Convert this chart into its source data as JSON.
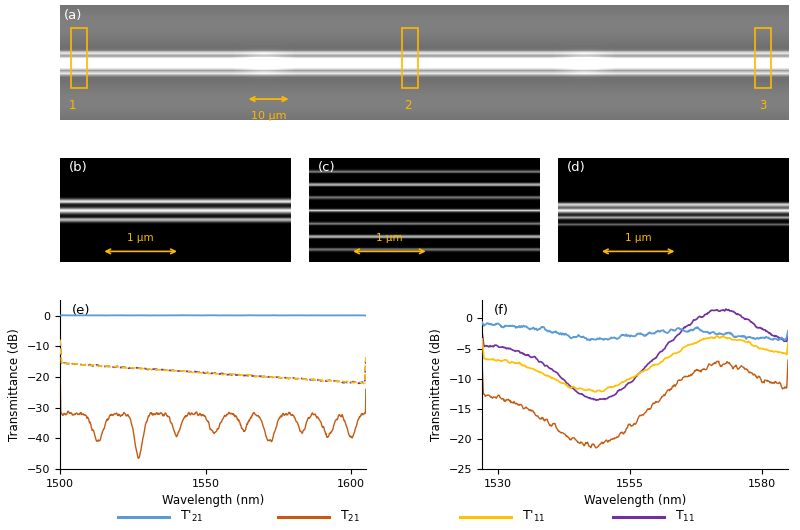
{
  "plot_e": {
    "xlim": [
      1500,
      1605
    ],
    "ylim": [
      -50,
      5
    ],
    "yticks": [
      0,
      -10,
      -20,
      -30,
      -40,
      -50
    ],
    "xticks": [
      1500,
      1550,
      1600
    ],
    "xlabel": "Wavelength (nm)",
    "ylabel": "Transmittance (dB)",
    "label": "(e)"
  },
  "plot_f": {
    "xlim": [
      1527,
      1585
    ],
    "ylim": [
      -25,
      3
    ],
    "yticks": [
      0,
      -5,
      -10,
      -15,
      -20,
      -25
    ],
    "xticks": [
      1530,
      1555,
      1580
    ],
    "xlabel": "Wavelength (nm)",
    "ylabel": "Transmittance (dB)",
    "label": "(f)"
  },
  "colors": {
    "T21_prime": "#5B9BD5",
    "T21": "#C55A11",
    "T11_prime": "#FFC000",
    "T11": "#7030A0"
  },
  "scale_bar_color": "#FFB800",
  "panel_a_bg": "#808080",
  "panel_bcd_bg": "#000000"
}
